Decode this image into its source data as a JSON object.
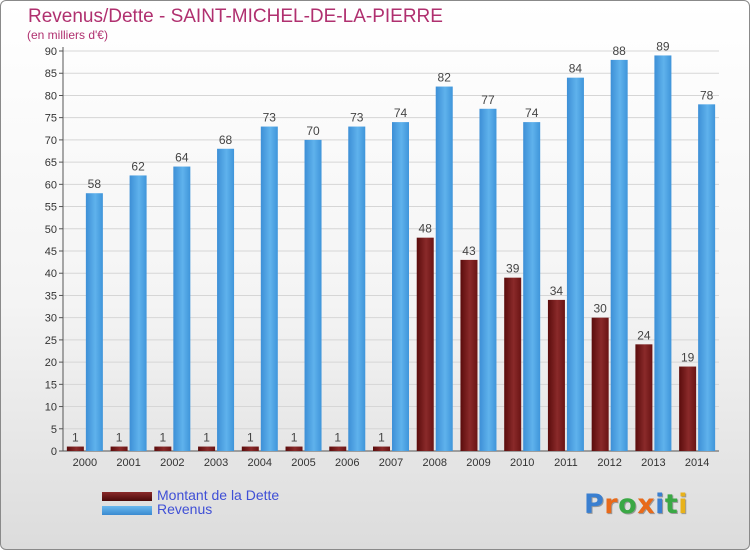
{
  "chart_data": {
    "type": "bar",
    "title": "Revenus/Dette - SAINT-MICHEL-DE-LA-PIERRE",
    "subtitle": "(en milliers d'€)",
    "categories": [
      "2000",
      "2001",
      "2002",
      "2003",
      "2004",
      "2005",
      "2006",
      "2007",
      "2008",
      "2009",
      "2010",
      "2011",
      "2012",
      "2013",
      "2014"
    ],
    "series": [
      {
        "name": "Montant de la Dette",
        "color": "#7a1a1a",
        "values": [
          1,
          1,
          1,
          1,
          1,
          1,
          1,
          1,
          48,
          43,
          39,
          34,
          30,
          24,
          19
        ]
      },
      {
        "name": "Revenus",
        "color": "#4aa3e3",
        "values": [
          58,
          62,
          64,
          68,
          73,
          70,
          73,
          74,
          82,
          77,
          74,
          84,
          88,
          89,
          78
        ]
      }
    ],
    "yticks": [
      0,
      5,
      10,
      15,
      20,
      25,
      30,
      35,
      40,
      45,
      50,
      55,
      60,
      65,
      70,
      75,
      80,
      85,
      90
    ],
    "ylim": [
      0,
      90
    ],
    "grid": true,
    "legend_position": "bottom-left"
  },
  "logo": {
    "letters": [
      {
        "char": "P",
        "color": "#3a7fd0"
      },
      {
        "char": "r",
        "color": "#e86a1a"
      },
      {
        "char": "o",
        "color": "#3aa845"
      },
      {
        "char": "x",
        "color": "#e86a1a"
      },
      {
        "char": "i",
        "color": "#3a7fd0"
      },
      {
        "char": "t",
        "color": "#3aa845"
      },
      {
        "char": "i",
        "color": "#e8b21a"
      }
    ]
  }
}
